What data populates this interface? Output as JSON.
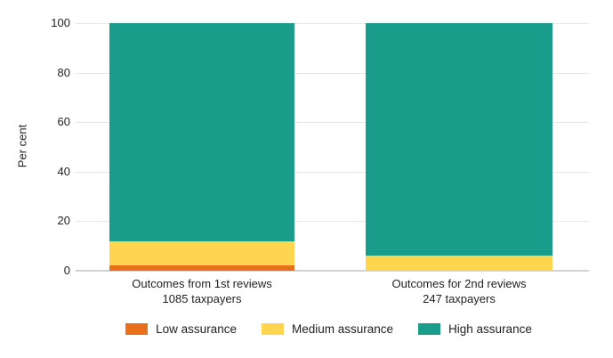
{
  "chart_data": {
    "type": "bar",
    "stacked": true,
    "orientation": "vertical",
    "ylabel": "Per cent",
    "ylim": [
      0,
      100
    ],
    "yticks": [
      0,
      20,
      40,
      60,
      80,
      100
    ],
    "grid": true,
    "legend_position": "bottom",
    "categories": [
      {
        "lines": [
          "Outcomes from 1st reviews",
          "1085 taxpayers"
        ]
      },
      {
        "lines": [
          "Outcomes for 2nd reviews",
          "247 taxpayers"
        ]
      }
    ],
    "series": [
      {
        "name": "Low assurance",
        "color": "#e8701a",
        "values": [
          2,
          0
        ]
      },
      {
        "name": "Medium assurance",
        "color": "#ffd44f",
        "values": [
          10,
          6
        ]
      },
      {
        "name": "High assurance",
        "color": "#1a9c8b",
        "values": [
          88,
          94
        ]
      }
    ],
    "style_colors": {
      "background": "#ffffff",
      "gridline": "#e7e7e7",
      "axis_line": "#d2d2d2",
      "text": "#1f1f1f"
    }
  }
}
